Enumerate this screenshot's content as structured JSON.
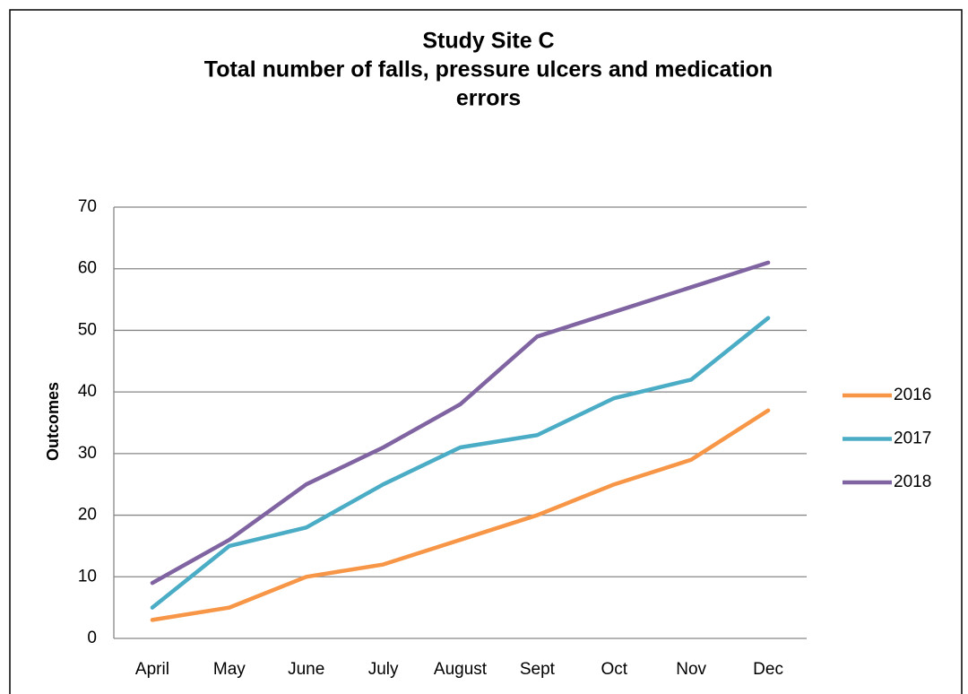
{
  "chart_data": {
    "type": "line",
    "title": [
      "Study Site C",
      "Total number of falls, pressure ulcers and medication",
      "errors"
    ],
    "ylabel": "Outcomes",
    "categories": [
      "April",
      "May",
      "June",
      "July",
      "August",
      "Sept",
      "Oct",
      "Nov",
      "Dec"
    ],
    "series": [
      {
        "name": "2016",
        "color": "#f79646",
        "values": [
          3,
          5,
          10,
          12,
          16,
          20,
          25,
          29,
          37
        ]
      },
      {
        "name": "2017",
        "color": "#4bacc6",
        "values": [
          5,
          15,
          18,
          25,
          31,
          33,
          39,
          42,
          52
        ]
      },
      {
        "name": "2018",
        "color": "#8064a2",
        "values": [
          9,
          16,
          25,
          31,
          38,
          49,
          53,
          57,
          61
        ]
      }
    ],
    "ylim": [
      0,
      70
    ],
    "yticks": [
      0,
      10,
      20,
      30,
      40,
      50,
      60,
      70
    ],
    "grid": true,
    "legend": "right"
  }
}
